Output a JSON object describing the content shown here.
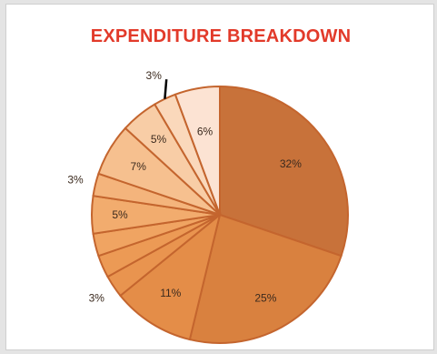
{
  "chart_data": {
    "type": "pie",
    "title": "EXPENDITURE BREAKDOWN",
    "values": [
      32,
      25,
      11,
      3,
      3,
      3,
      5,
      3,
      7,
      5,
      3,
      6
    ],
    "labels": [
      "32%",
      "25%",
      "11%",
      "3%",
      "",
      "",
      "5%",
      "3%",
      "7%",
      "5%",
      "3%",
      "6%"
    ],
    "colors": [
      "#c8723a",
      "#d9813f",
      "#e48d48",
      "#e9944f",
      "#ec9a55",
      "#f0a462",
      "#f2ac6e",
      "#f4b47c",
      "#f6c08f",
      "#f8cda6",
      "#fad8bb",
      "#fce3d3"
    ],
    "title_color": "#e23a2a",
    "slice_stroke": "#c4652e",
    "leader_line": "#000000"
  }
}
